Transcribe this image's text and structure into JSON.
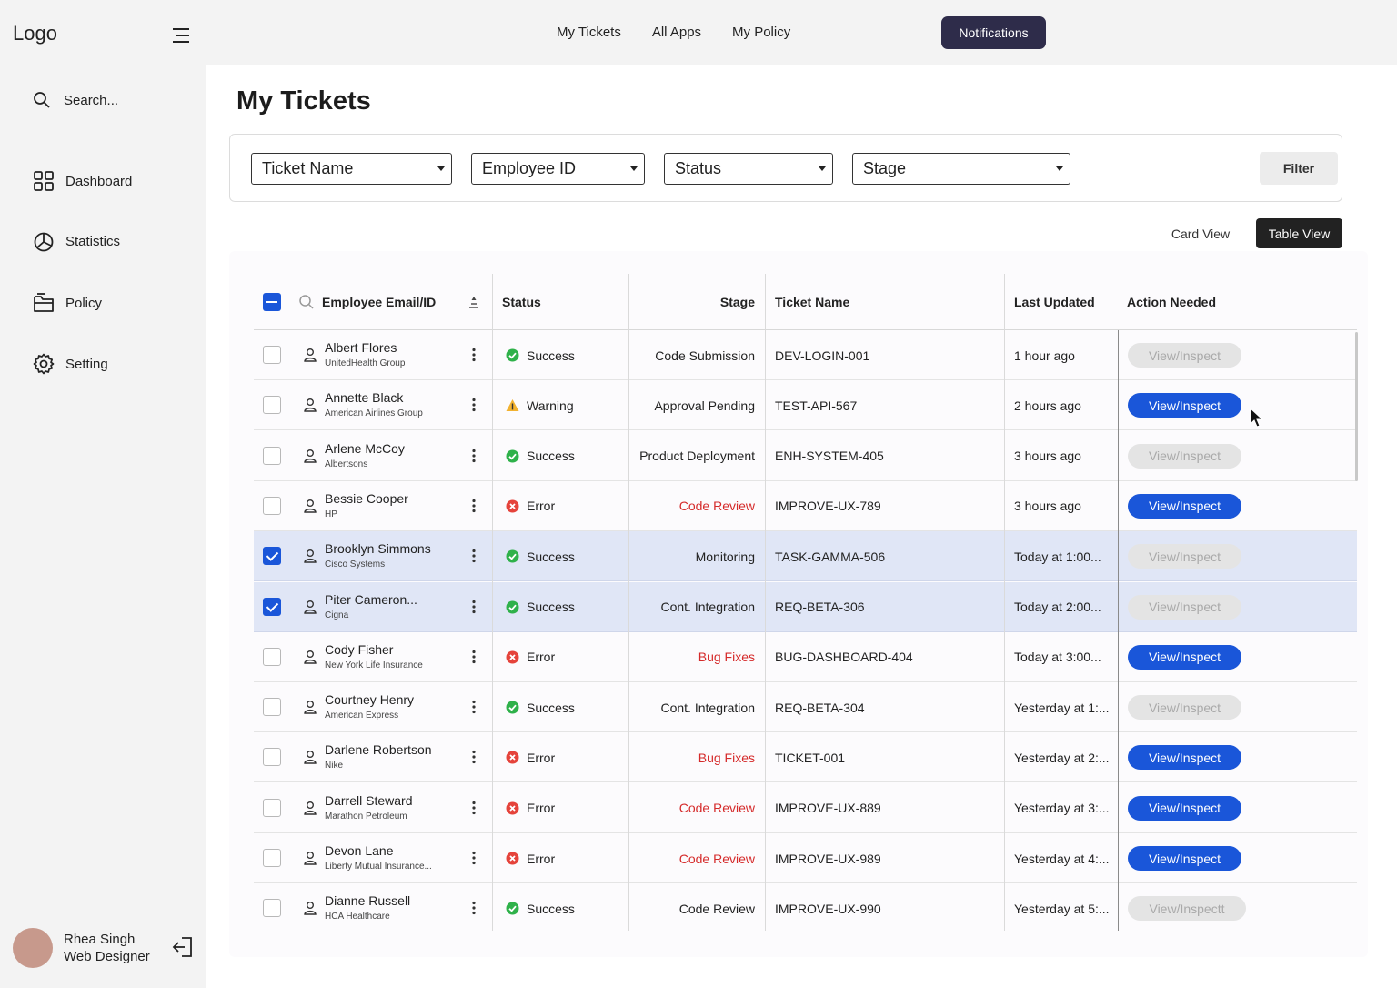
{
  "sidebar": {
    "logo": "Logo",
    "search_label": "Search...",
    "nav": [
      {
        "label": "Dashboard",
        "icon": "grid-icon"
      },
      {
        "label": "Statistics",
        "icon": "pie-chart-icon"
      },
      {
        "label": "Policy",
        "icon": "folder-icon"
      },
      {
        "label": "Setting",
        "icon": "gear-icon"
      }
    ],
    "user": {
      "name": "Rhea Singh",
      "role": "Web Designer"
    }
  },
  "topbar": {
    "links": [
      "My Tickets",
      "All Apps",
      "My Policy"
    ],
    "notifications_label": "Notifications"
  },
  "page": {
    "title": "My Tickets"
  },
  "filters": {
    "ticket_name": "Ticket Name",
    "employee_id": "Employee ID",
    "status": "Status",
    "stage": "Stage",
    "filter_label": "Filter"
  },
  "views": {
    "card": "Card View",
    "table": "Table View",
    "active": "table"
  },
  "table": {
    "headers": {
      "employee": "Employee Email/ID",
      "status": "Status",
      "stage": "Stage",
      "ticket": "Ticket Name",
      "updated": "Last Updated",
      "action": "Action Needed"
    },
    "rows": [
      {
        "name": "Albert Flores",
        "org": "UnitedHealth Group",
        "status": "Success",
        "stage": "Code Submission",
        "stage_red": false,
        "ticket": "DEV-LOGIN-001",
        "updated": "1 hour ago",
        "action": "View/Inspect",
        "action_active": false,
        "selected": false
      },
      {
        "name": "Annette Black",
        "org": "American Airlines Group",
        "status": "Warning",
        "stage": "Approval Pending",
        "stage_red": false,
        "ticket": "TEST-API-567",
        "updated": "2 hours ago",
        "action": "View/Inspect",
        "action_active": true,
        "selected": false
      },
      {
        "name": "Arlene McCoy",
        "org": "Albertsons",
        "status": "Success",
        "stage": "Product Deployment",
        "stage_red": false,
        "ticket": "ENH-SYSTEM-405",
        "updated": "3 hours ago",
        "action": "View/Inspect",
        "action_active": false,
        "selected": false
      },
      {
        "name": "Bessie Cooper",
        "org": "HP",
        "status": "Error",
        "stage": "Code Review",
        "stage_red": true,
        "ticket": "IMPROVE-UX-789",
        "updated": "3 hours ago",
        "action": "View/Inspect",
        "action_active": true,
        "selected": false
      },
      {
        "name": "Brooklyn Simmons",
        "org": "Cisco Systems",
        "status": "Success",
        "stage": "Monitoring",
        "stage_red": false,
        "ticket": "TASK-GAMMA-506",
        "updated": "Today at 1:00...",
        "action": "View/Inspect",
        "action_active": false,
        "selected": true
      },
      {
        "name": "Piter Cameron...",
        "org": "Cigna",
        "status": "Success",
        "stage": "Cont. Integration",
        "stage_red": false,
        "ticket": "REQ-BETA-306",
        "updated": "Today at 2:00...",
        "action": "View/Inspect",
        "action_active": false,
        "selected": true
      },
      {
        "name": "Cody Fisher",
        "org": "New York Life Insurance",
        "status": "Error",
        "stage": "Bug Fixes",
        "stage_red": true,
        "ticket": "BUG-DASHBOARD-404",
        "updated": "Today at 3:00...",
        "action": "View/Inspect",
        "action_active": true,
        "selected": false
      },
      {
        "name": "Courtney Henry",
        "org": "American Express",
        "status": "Success",
        "stage": "Cont. Integration",
        "stage_red": false,
        "ticket": "REQ-BETA-304",
        "updated": "Yesterday at 1:...",
        "action": "View/Inspect",
        "action_active": false,
        "selected": false
      },
      {
        "name": "Darlene Robertson",
        "org": "Nike",
        "status": "Error",
        "stage": "Bug Fixes",
        "stage_red": true,
        "ticket": "TICKET-001",
        "updated": "Yesterday at 2:...",
        "action": "View/Inspect",
        "action_active": true,
        "selected": false
      },
      {
        "name": "Darrell Steward",
        "org": "Marathon Petroleum",
        "status": "Error",
        "stage": "Code Review",
        "stage_red": true,
        "ticket": "IMPROVE-UX-889",
        "updated": "Yesterday at 3:...",
        "action": "View/Inspect",
        "action_active": true,
        "selected": false
      },
      {
        "name": "Devon Lane",
        "org": "Liberty Mutual Insurance...",
        "status": "Error",
        "stage": "Code Review",
        "stage_red": true,
        "ticket": "IMPROVE-UX-989",
        "updated": "Yesterday at 4:...",
        "action": "View/Inspect",
        "action_active": true,
        "selected": false
      },
      {
        "name": "Dianne Russell",
        "org": "HCA Healthcare",
        "status": "Success",
        "stage": "Code Review",
        "stage_red": false,
        "ticket": "IMPROVE-UX-990",
        "updated": "Yesterday at 5:...",
        "action": "View/Inspectt",
        "action_active": false,
        "selected": false
      }
    ]
  },
  "colors": {
    "accent": "#1a56d9",
    "notif_bg": "#2e2c4a",
    "success": "#2fb14a",
    "warning": "#f2b230",
    "error": "#e5433b",
    "stage_error": "#d52a2a"
  }
}
